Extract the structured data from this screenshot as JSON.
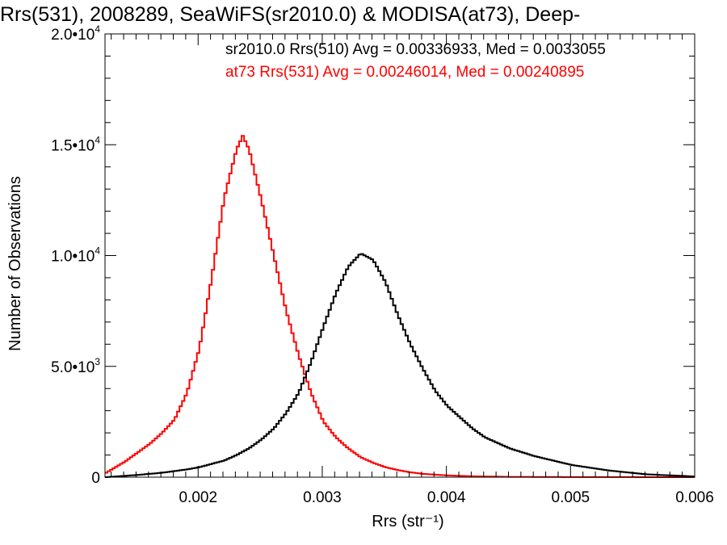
{
  "chart_data": {
    "type": "line",
    "title": "Rrs(531), 2008289, SeaWiFS(sr2010.0) & MODISA(at73), Deep-",
    "xlabel": "Rrs (str⁻¹)",
    "ylabel": "Number of Observations",
    "xlim": [
      0.00125,
      0.006
    ],
    "ylim": [
      0,
      20000
    ],
    "x_ticks": [
      {
        "value": 0.002,
        "label": "0.002"
      },
      {
        "value": 0.003,
        "label": "0.003"
      },
      {
        "value": 0.004,
        "label": "0.004"
      },
      {
        "value": 0.005,
        "label": "0.005"
      },
      {
        "value": 0.006,
        "label": "0.006"
      }
    ],
    "y_ticks": [
      {
        "value": 0,
        "mantissa": "0",
        "exponent": ""
      },
      {
        "value": 5000,
        "mantissa": "5.0•10",
        "exponent": "3"
      },
      {
        "value": 10000,
        "mantissa": "1.0•10",
        "exponent": "4"
      },
      {
        "value": 15000,
        "mantissa": "1.5•10",
        "exponent": "4"
      },
      {
        "value": 20000,
        "mantissa": "2.0•10",
        "exponent": "4"
      }
    ],
    "annotations": [
      {
        "text": "sr2010.0 Rrs(510) Avg = 0.00336933, Med = 0.0033055",
        "color": "#000000"
      },
      {
        "text": "at73 Rrs(531) Avg = 0.00246014, Med = 0.00240895",
        "color": "#ff0000"
      }
    ],
    "series": [
      {
        "color": "#ff0000",
        "x": [
          0.00125,
          0.0014,
          0.0016,
          0.0017,
          0.0018,
          0.0019,
          0.002,
          0.0021,
          0.0022,
          0.0023,
          0.00235,
          0.0024,
          0.0025,
          0.0026,
          0.0027,
          0.0028,
          0.0029,
          0.003,
          0.0031,
          0.0032,
          0.0033,
          0.0034,
          0.0035,
          0.0036,
          0.0037,
          0.0038,
          0.004,
          0.0042,
          0.0045,
          0.005,
          0.006
        ],
        "y": [
          200,
          700,
          1500,
          2000,
          2600,
          3800,
          5800,
          9000,
          12600,
          14800,
          15400,
          14800,
          12500,
          10000,
          7500,
          5500,
          3800,
          2500,
          1800,
          1300,
          900,
          650,
          450,
          320,
          220,
          150,
          80,
          40,
          15,
          5,
          0
        ]
      },
      {
        "color": "#000000",
        "x": [
          0.00125,
          0.0015,
          0.0017,
          0.0019,
          0.002,
          0.0021,
          0.0022,
          0.0023,
          0.0024,
          0.0025,
          0.0026,
          0.0027,
          0.0028,
          0.0029,
          0.003,
          0.0031,
          0.0032,
          0.0033,
          0.0034,
          0.0035,
          0.0036,
          0.0037,
          0.0038,
          0.0039,
          0.004,
          0.0041,
          0.0042,
          0.0043,
          0.0045,
          0.0047,
          0.005,
          0.0053,
          0.0056,
          0.006
        ],
        "y": [
          0,
          100,
          200,
          350,
          450,
          600,
          750,
          1000,
          1300,
          1700,
          2200,
          2900,
          3800,
          5200,
          6800,
          8300,
          9500,
          10100,
          9800,
          8800,
          7300,
          6000,
          4900,
          3900,
          3200,
          2700,
          2200,
          1800,
          1300,
          950,
          550,
          300,
          130,
          30
        ]
      }
    ]
  }
}
